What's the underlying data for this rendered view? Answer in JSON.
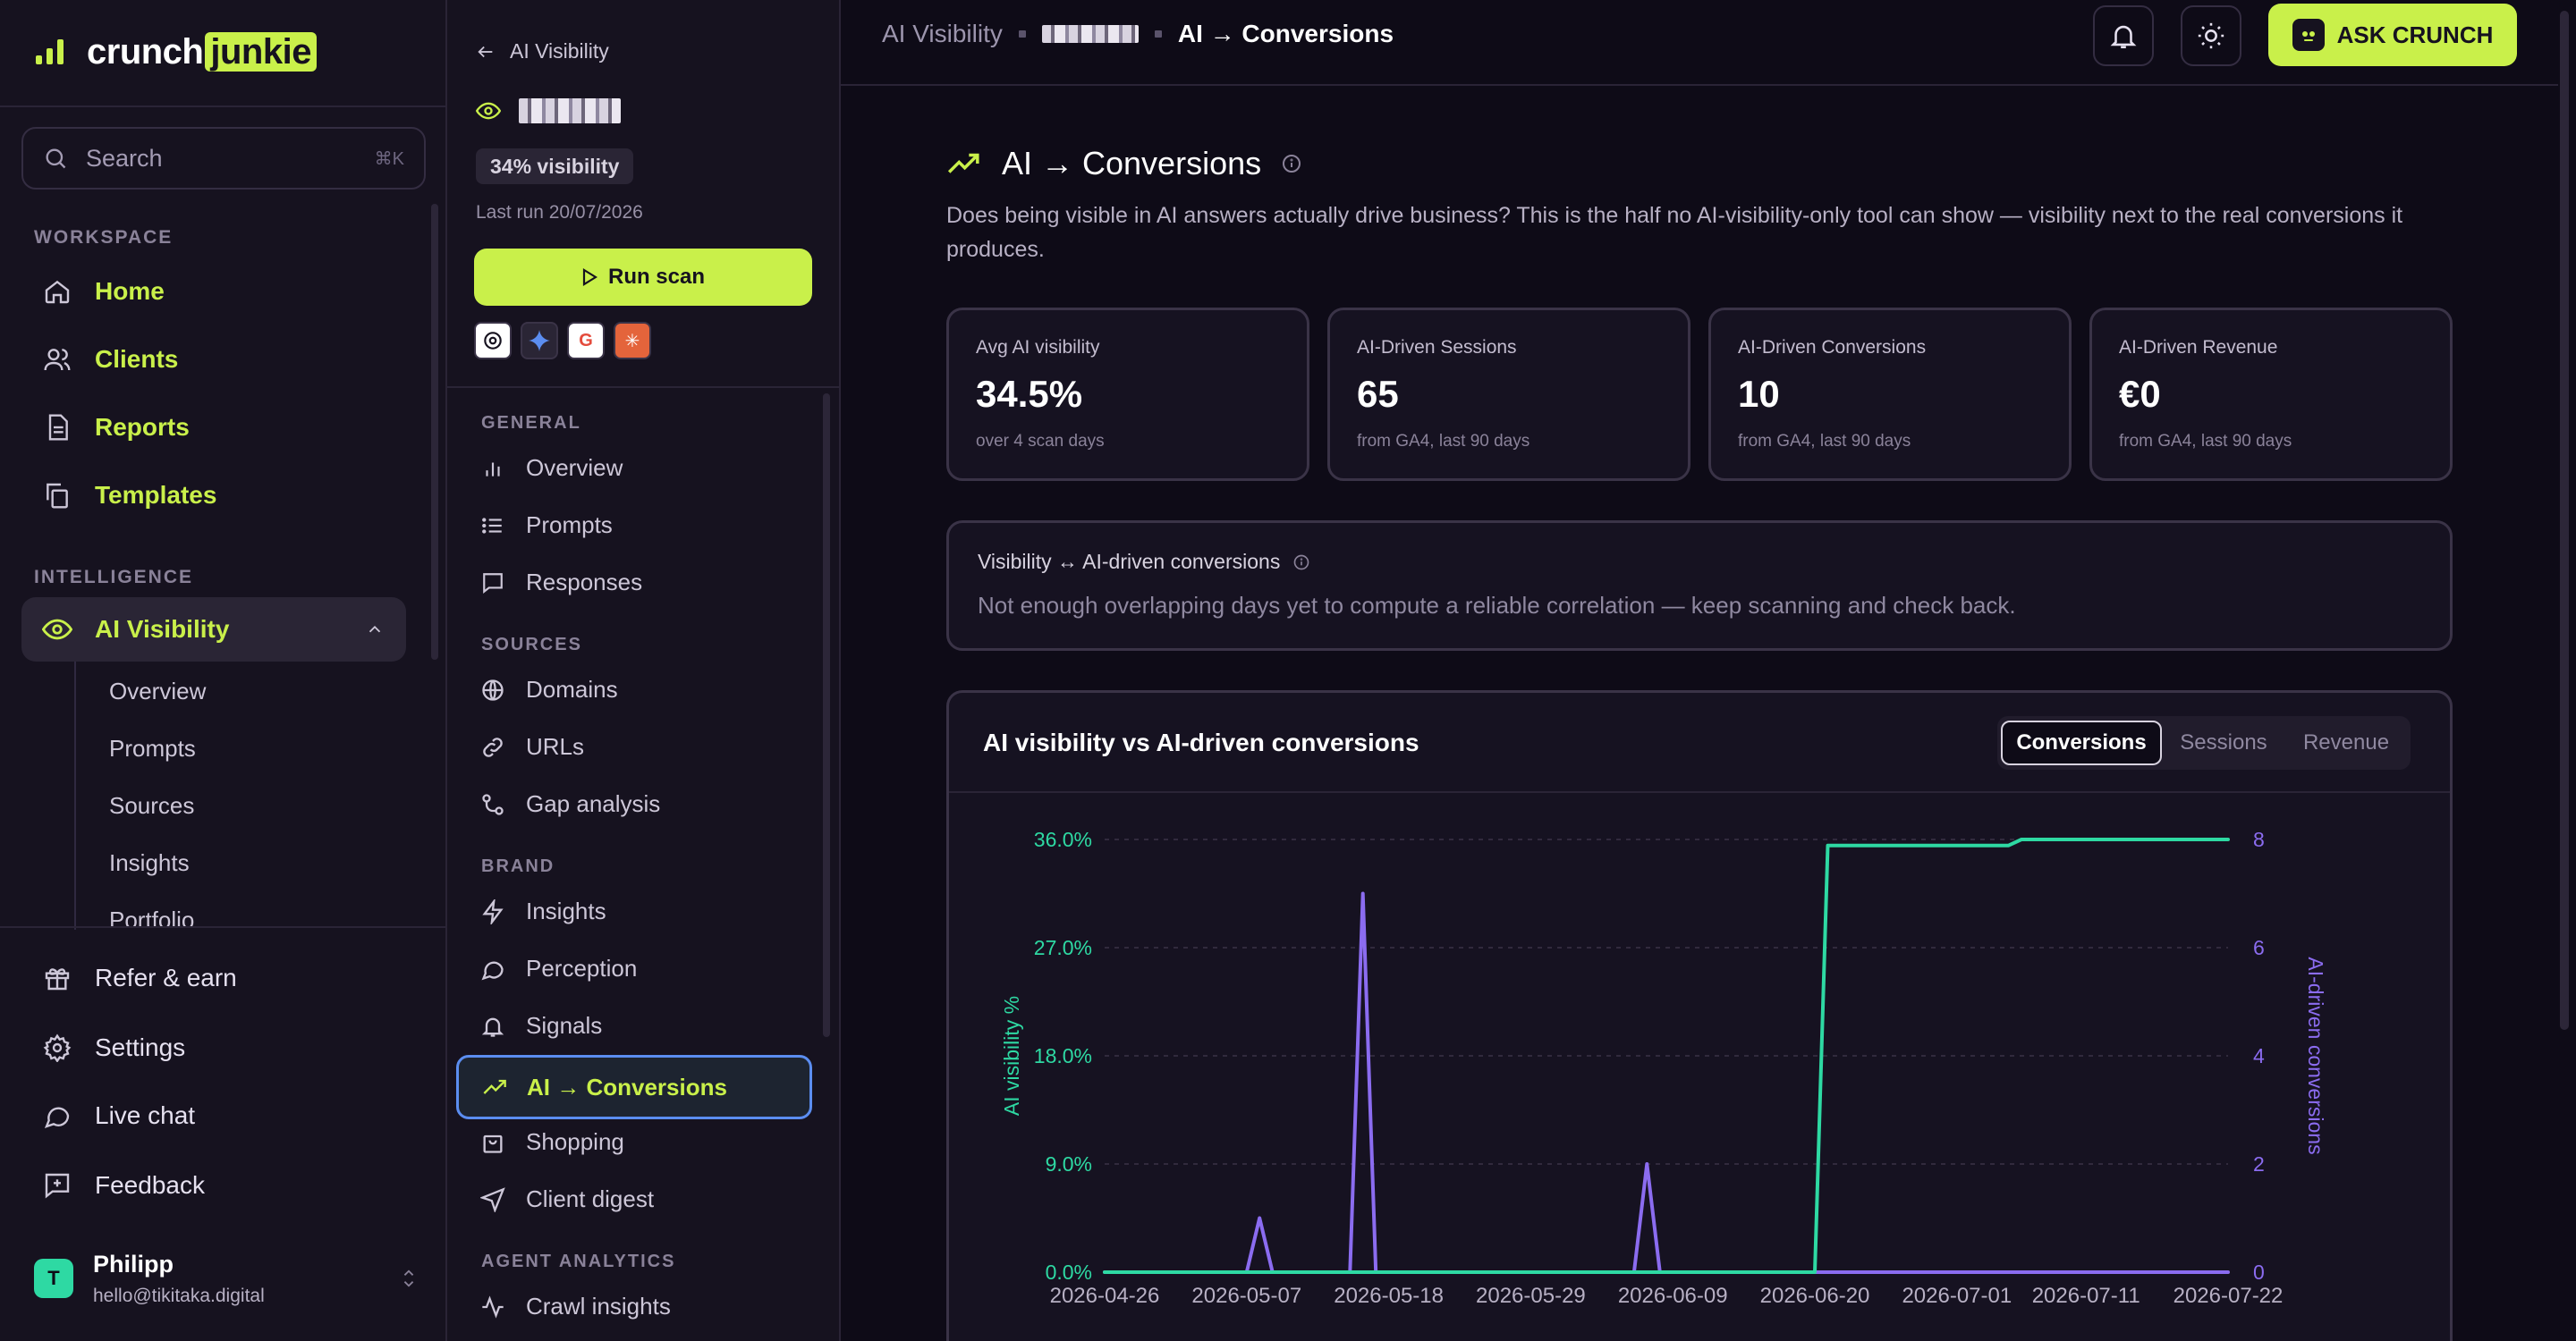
{
  "sidebar": {
    "logo": {
      "part1": "crunch",
      "part2": "junkie"
    },
    "search": {
      "placeholder": "Search",
      "shortcut": "⌘K"
    },
    "workspace_label": "WORKSPACE",
    "workspace_items": [
      {
        "label": "Home",
        "icon": "home-icon"
      },
      {
        "label": "Clients",
        "icon": "users-icon"
      },
      {
        "label": "Reports",
        "icon": "document-icon"
      },
      {
        "label": "Templates",
        "icon": "copy-icon"
      }
    ],
    "intelligence_label": "INTELLIGENCE",
    "ai_visibility": {
      "label": "AI Visibility",
      "icon": "eye-icon"
    },
    "ai_visibility_sub": [
      "Overview",
      "Prompts",
      "Sources",
      "Insights",
      "Portfolio"
    ],
    "bottom_items": [
      {
        "label": "Refer & earn",
        "icon": "gift-icon"
      },
      {
        "label": "Settings",
        "icon": "gear-icon"
      },
      {
        "label": "Live chat",
        "icon": "chat-icon"
      },
      {
        "label": "Feedback",
        "icon": "feedback-icon"
      }
    ],
    "user": {
      "name": "Philipp",
      "email": "hello@tikitaka.digital",
      "initials": "T"
    }
  },
  "subnav": {
    "back_label": "AI Visibility",
    "visibility_pill": "34% visibility",
    "last_run": "Last run 20/07/2026",
    "run_button": "Run scan",
    "general_label": "GENERAL",
    "general_items": [
      "Overview",
      "Prompts",
      "Responses"
    ],
    "sources_label": "SOURCES",
    "sources_items": [
      "Domains",
      "URLs",
      "Gap analysis"
    ],
    "brand_label": "BRAND",
    "brand_items": [
      "Insights",
      "Perception",
      "Signals"
    ],
    "active_item": "AI → Conversions",
    "brand_items_after": [
      "Shopping",
      "Client digest"
    ],
    "agent_label": "AGENT ANALYTICS",
    "agent_items": [
      "Crawl insights"
    ]
  },
  "topbar": {
    "crumb_root": "AI Visibility",
    "crumb_current": "AI → Conversions",
    "ask_button": "ASK CRUNCH"
  },
  "page": {
    "title": "AI → Conversions",
    "description": "Does being visible in AI answers actually drive business? This is the half no AI-visibility-only tool can show — visibility next to the real conversions it produces."
  },
  "kpis": [
    {
      "label": "Avg AI visibility",
      "value": "34.5%",
      "sub": "over 4 scan days"
    },
    {
      "label": "AI-Driven Sessions",
      "value": "65",
      "sub": "from GA4, last 90 days"
    },
    {
      "label": "AI-Driven Conversions",
      "value": "10",
      "sub": "from GA4, last 90 days"
    },
    {
      "label": "AI-Driven Revenue",
      "value": "€0",
      "sub": "from GA4, last 90 days"
    }
  ],
  "correlation": {
    "title": "Visibility ↔ AI-driven conversions",
    "message": "Not enough overlapping days yet to compute a reliable correlation — keep scanning and check back."
  },
  "chart_card": {
    "title": "AI visibility vs AI-driven conversions",
    "tabs": [
      "Conversions",
      "Sessions",
      "Revenue"
    ],
    "active_tab": "Conversions"
  },
  "chart_data": {
    "type": "line",
    "x_ticks": [
      "2026-04-26",
      "2026-05-07",
      "2026-05-18",
      "2026-05-29",
      "2026-06-09",
      "2026-06-20",
      "2026-07-01",
      "2026-07-11",
      "2026-07-22"
    ],
    "ylabel": "AI visibility %",
    "y2label": "AI-driven conversions",
    "y_ticks": [
      "0.0%",
      "9.0%",
      "18.0%",
      "27.0%",
      "36.0%"
    ],
    "y2_ticks": [
      "0",
      "2",
      "4",
      "6",
      "8"
    ],
    "ylim": [
      0,
      36
    ],
    "y2lim": [
      0,
      8
    ],
    "grid": true,
    "colors": {
      "visibility": "#2ed9a3",
      "conversions": "#8b6cf0"
    },
    "series": [
      {
        "axis": "left",
        "points": [
          [
            "2026-04-26",
            0
          ],
          [
            "2026-06-20",
            0
          ],
          [
            "2026-06-21",
            35.5
          ],
          [
            "2026-07-05",
            35.5
          ],
          [
            "2026-07-06",
            39.0
          ],
          [
            "2026-07-19",
            39.0
          ],
          [
            "2026-07-20",
            38.5
          ],
          [
            "2026-07-22",
            38.5
          ]
        ]
      },
      {
        "axis": "right",
        "points": [
          [
            "2026-04-26",
            0
          ],
          [
            "2026-05-07",
            0
          ],
          [
            "2026-05-08",
            1
          ],
          [
            "2026-05-09",
            0
          ],
          [
            "2026-05-15",
            0
          ],
          [
            "2026-05-16",
            7
          ],
          [
            "2026-05-17",
            0
          ],
          [
            "2026-06-06",
            0
          ],
          [
            "2026-06-07",
            2
          ],
          [
            "2026-06-08",
            0
          ],
          [
            "2026-07-22",
            0
          ]
        ]
      }
    ]
  }
}
